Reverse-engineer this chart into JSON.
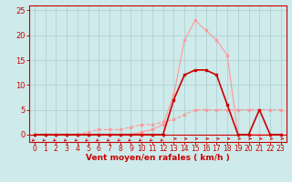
{
  "xlabel": "Vent moyen/en rafales ( km/h )",
  "xlim": [
    -0.5,
    23.5
  ],
  "ylim": [
    -1.5,
    26
  ],
  "yticks": [
    0,
    5,
    10,
    15,
    20,
    25
  ],
  "xticks": [
    0,
    1,
    2,
    3,
    4,
    5,
    6,
    7,
    8,
    9,
    10,
    11,
    12,
    13,
    14,
    15,
    16,
    17,
    18,
    19,
    20,
    21,
    22,
    23
  ],
  "bg_color": "#ceeaea",
  "grid_color": "#aacccc",
  "line1_x": [
    0,
    1,
    2,
    3,
    4,
    5,
    6,
    7,
    8,
    9,
    10,
    11,
    12,
    13,
    14,
    15,
    16,
    17,
    18,
    19,
    20,
    21,
    22,
    23
  ],
  "line1_y": [
    0,
    0,
    0,
    0,
    0,
    0,
    0,
    0,
    0,
    0,
    0.5,
    1,
    2,
    8,
    19,
    23,
    21,
    19,
    16,
    0,
    0,
    0,
    0,
    0
  ],
  "line1_color": "#ff9999",
  "line2_x": [
    0,
    1,
    2,
    3,
    4,
    5,
    6,
    7,
    8,
    9,
    10,
    11,
    12,
    13,
    14,
    15,
    16,
    17,
    18,
    19,
    20,
    21,
    22,
    23
  ],
  "line2_y": [
    0,
    0,
    0,
    0,
    0,
    0,
    0,
    0,
    0,
    0,
    0,
    0,
    0,
    7,
    12,
    13,
    13,
    12,
    6,
    0,
    0,
    5,
    0,
    0
  ],
  "line2_color": "#cc0000",
  "line3_x": [
    0,
    1,
    2,
    3,
    4,
    5,
    6,
    7,
    8,
    9,
    10,
    11,
    12,
    13,
    14,
    15,
    16,
    17,
    18,
    19,
    20,
    21,
    22,
    23
  ],
  "line3_y": [
    0,
    0,
    0,
    0,
    0,
    0.5,
    1,
    1,
    1,
    1.5,
    2,
    2,
    2.5,
    3,
    4,
    5,
    5,
    5,
    5,
    5,
    5,
    5,
    5,
    5
  ],
  "line3_color": "#ff9999",
  "wind_low_x": [
    0,
    1,
    2,
    3,
    4,
    5,
    6,
    7,
    8,
    9,
    10,
    11,
    12
  ],
  "wind_high_x": [
    13,
    14,
    15,
    16,
    17,
    18,
    19,
    20,
    21,
    22,
    23
  ],
  "wind_arrow_color": "#cc0000",
  "spine_color": "#cc0000",
  "tick_color": "#cc0000",
  "xlabel_color": "#cc0000",
  "xlabel_fontsize": 6.5,
  "ytick_fontsize": 6,
  "xtick_fontsize": 5.5
}
